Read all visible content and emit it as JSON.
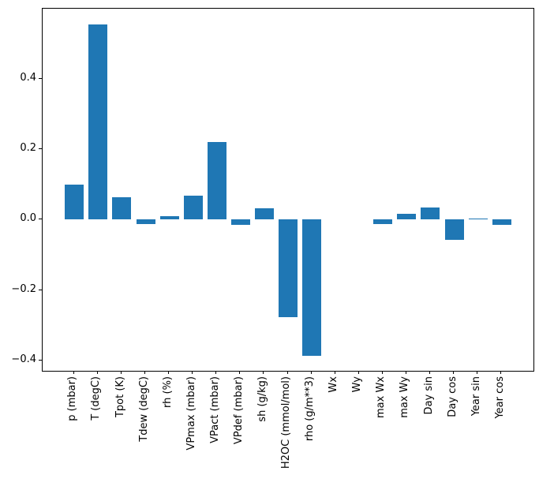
{
  "figure": {
    "background": "#ffffff",
    "spine_color": "#000000",
    "tick_color": "#000000"
  },
  "chart_data": {
    "type": "bar",
    "title": "",
    "xlabel": "",
    "ylabel": "",
    "categories": [
      "p (mbar)",
      "T (degC)",
      "Tpot (K)",
      "Tdew (degC)",
      "rh (%)",
      "VPmax (mbar)",
      "VPact (mbar)",
      "VPdef (mbar)",
      "sh (g/kg)",
      "H2OC (mmol/mol)",
      "rho (g/m**3)",
      "Wx",
      "Wy",
      "max Wx",
      "max Wy",
      "Day sin",
      "Day cos",
      "Year sin",
      "Year cos"
    ],
    "values": [
      0.1,
      0.555,
      0.064,
      -0.013,
      0.011,
      0.068,
      0.221,
      -0.015,
      0.033,
      -0.277,
      -0.387,
      0.0,
      0.0,
      -0.013,
      0.017,
      0.034,
      -0.058,
      0.004,
      -0.016
    ],
    "bar_color": "#1f77b4",
    "bar_width": 0.8,
    "xlim": [
      -1.34,
      19.34
    ],
    "ylim": [
      -0.43,
      0.6
    ],
    "yticks": [
      {
        "value": 0.4,
        "label": "0.4"
      },
      {
        "value": 0.2,
        "label": "0.2"
      },
      {
        "value": 0.0,
        "label": "0.0"
      },
      {
        "value": -0.2,
        "label": "−0.2"
      },
      {
        "value": -0.4,
        "label": "−0.4"
      }
    ],
    "grid": false,
    "legend": false,
    "x_tick_rotation_deg": 90
  }
}
